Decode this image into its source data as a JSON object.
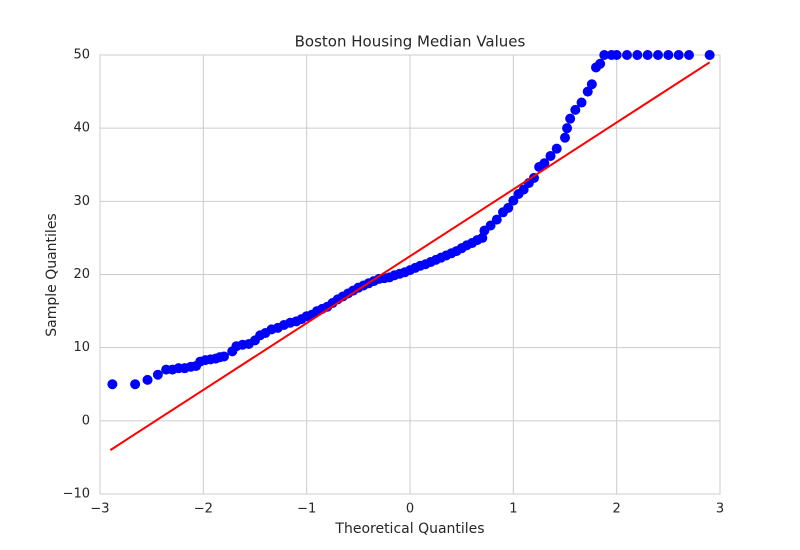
{
  "chart_data": {
    "type": "scatter",
    "title": "Boston Housing Median Values",
    "x_label": "Theoretical Quantiles",
    "y_label": "Sample Quantiles",
    "color": "#0000ff",
    "x": [
      -2.88,
      -2.66,
      -2.54,
      -2.44,
      -2.36,
      -2.3,
      -2.24,
      -2.18,
      -2.12,
      -2.07,
      -2.03,
      -1.98,
      -1.93,
      -1.88,
      -1.84,
      -1.8,
      -1.72,
      -1.68,
      -1.62,
      -1.56,
      -1.5,
      -1.45,
      -1.4,
      -1.34,
      -1.28,
      -1.22,
      -1.16,
      -1.1,
      -1.05,
      -1.0,
      -0.95,
      -0.9,
      -0.85,
      -0.8,
      -0.75,
      -0.7,
      -0.65,
      -0.6,
      -0.55,
      -0.5,
      -0.45,
      -0.4,
      -0.35,
      -0.3,
      -0.25,
      -0.2,
      -0.15,
      -0.1,
      -0.05,
      0,
      0.05,
      0.1,
      0.15,
      0.2,
      0.25,
      0.3,
      0.35,
      0.4,
      0.45,
      0.5,
      0.55,
      0.6,
      0.65,
      0.7,
      0.72,
      0.78,
      0.84,
      0.9,
      0.95,
      1.0,
      1.05,
      1.1,
      1.15,
      1.2,
      1.25,
      1.3,
      1.36,
      1.42,
      1.5,
      1.52,
      1.55,
      1.6,
      1.66,
      1.72,
      1.76,
      1.8,
      1.84,
      1.88,
      1.95,
      2.0,
      2.1,
      2.2,
      2.3,
      2.4,
      2.5,
      2.6,
      2.7,
      2.9
    ],
    "values": [
      5,
      5,
      5.6,
      6.3,
      7,
      7,
      7.2,
      7.2,
      7.4,
      7.5,
      8.1,
      8.3,
      8.4,
      8.5,
      8.7,
      8.8,
      9.5,
      10.2,
      10.4,
      10.5,
      11,
      11.7,
      12,
      12.5,
      12.7,
      13.1,
      13.4,
      13.6,
      13.9,
      14.3,
      14.5,
      15,
      15.3,
      15.6,
      16.1,
      16.6,
      17,
      17.4,
      17.8,
      18.2,
      18.5,
      18.8,
      19.1,
      19.4,
      19.5,
      19.6,
      19.9,
      20.1,
      20.3,
      20.6,
      20.9,
      21.2,
      21.4,
      21.7,
      22,
      22.3,
      22.6,
      22.9,
      23.2,
      23.6,
      24,
      24.3,
      24.7,
      25,
      26,
      26.7,
      27.5,
      28.5,
      29.1,
      30.1,
      31,
      31.6,
      32.5,
      33.2,
      34.7,
      35.2,
      36.2,
      37.2,
      38.7,
      40,
      41.3,
      42.5,
      43.5,
      45,
      46,
      48.3,
      48.8,
      50,
      50,
      50,
      50,
      50,
      50,
      50,
      50,
      50,
      50,
      50
    ],
    "line": {
      "x": [
        -2.9,
        2.9
      ],
      "y": [
        -4,
        49
      ],
      "color": "#ff0000"
    },
    "xlim": [
      -3,
      3
    ],
    "ylim": [
      -10,
      50
    ],
    "xticks": [
      {
        "value": -3,
        "label": "−3"
      },
      {
        "value": -2,
        "label": "−2"
      },
      {
        "value": -1,
        "label": "−1"
      },
      0,
      1,
      2,
      3
    ],
    "yticks": [
      {
        "value": -10,
        "label": "−10"
      },
      0,
      10,
      20,
      30,
      40,
      50
    ],
    "grid": true
  }
}
